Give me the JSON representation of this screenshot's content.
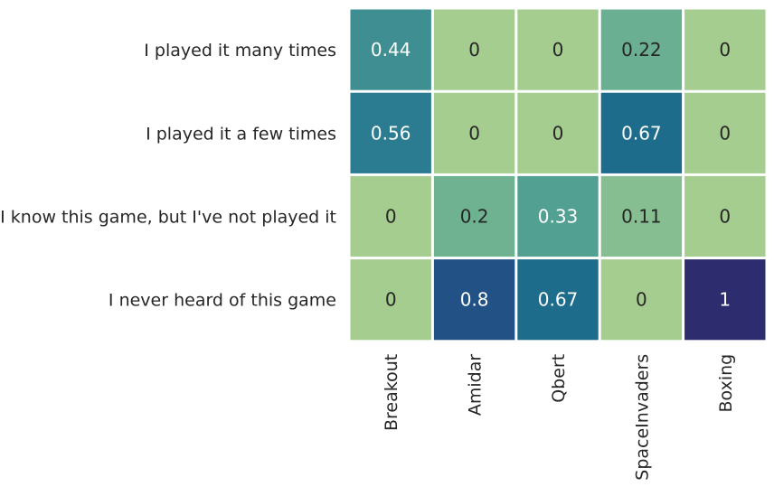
{
  "chart_data": {
    "type": "heatmap",
    "rows": [
      "I played it many times",
      "I played it a few times",
      "I know this game, but I've not played it",
      "I never heard of this game"
    ],
    "columns": [
      "Breakout",
      "Amidar",
      "Qbert",
      "SpaceInvaders",
      "Boxing"
    ],
    "values": [
      [
        0.44,
        0,
        0,
        0.22,
        0
      ],
      [
        0.56,
        0,
        0,
        0.67,
        0
      ],
      [
        0,
        0.2,
        0.33,
        0.11,
        0
      ],
      [
        0,
        0.8,
        0.67,
        0,
        1
      ]
    ],
    "value_labels": [
      [
        "0.44",
        "0",
        "0",
        "0.22",
        "0"
      ],
      [
        "0.56",
        "0",
        "0",
        "0.67",
        "0"
      ],
      [
        "0",
        "0.2",
        "0.33",
        "0.11",
        "0"
      ],
      [
        "0",
        "0.8",
        "0.67",
        "0",
        "1"
      ]
    ],
    "colormap": "crest",
    "vmin": 0,
    "vmax": 1,
    "colorbar": false,
    "grid": false,
    "title": "",
    "xlabel": "",
    "ylabel": ""
  }
}
